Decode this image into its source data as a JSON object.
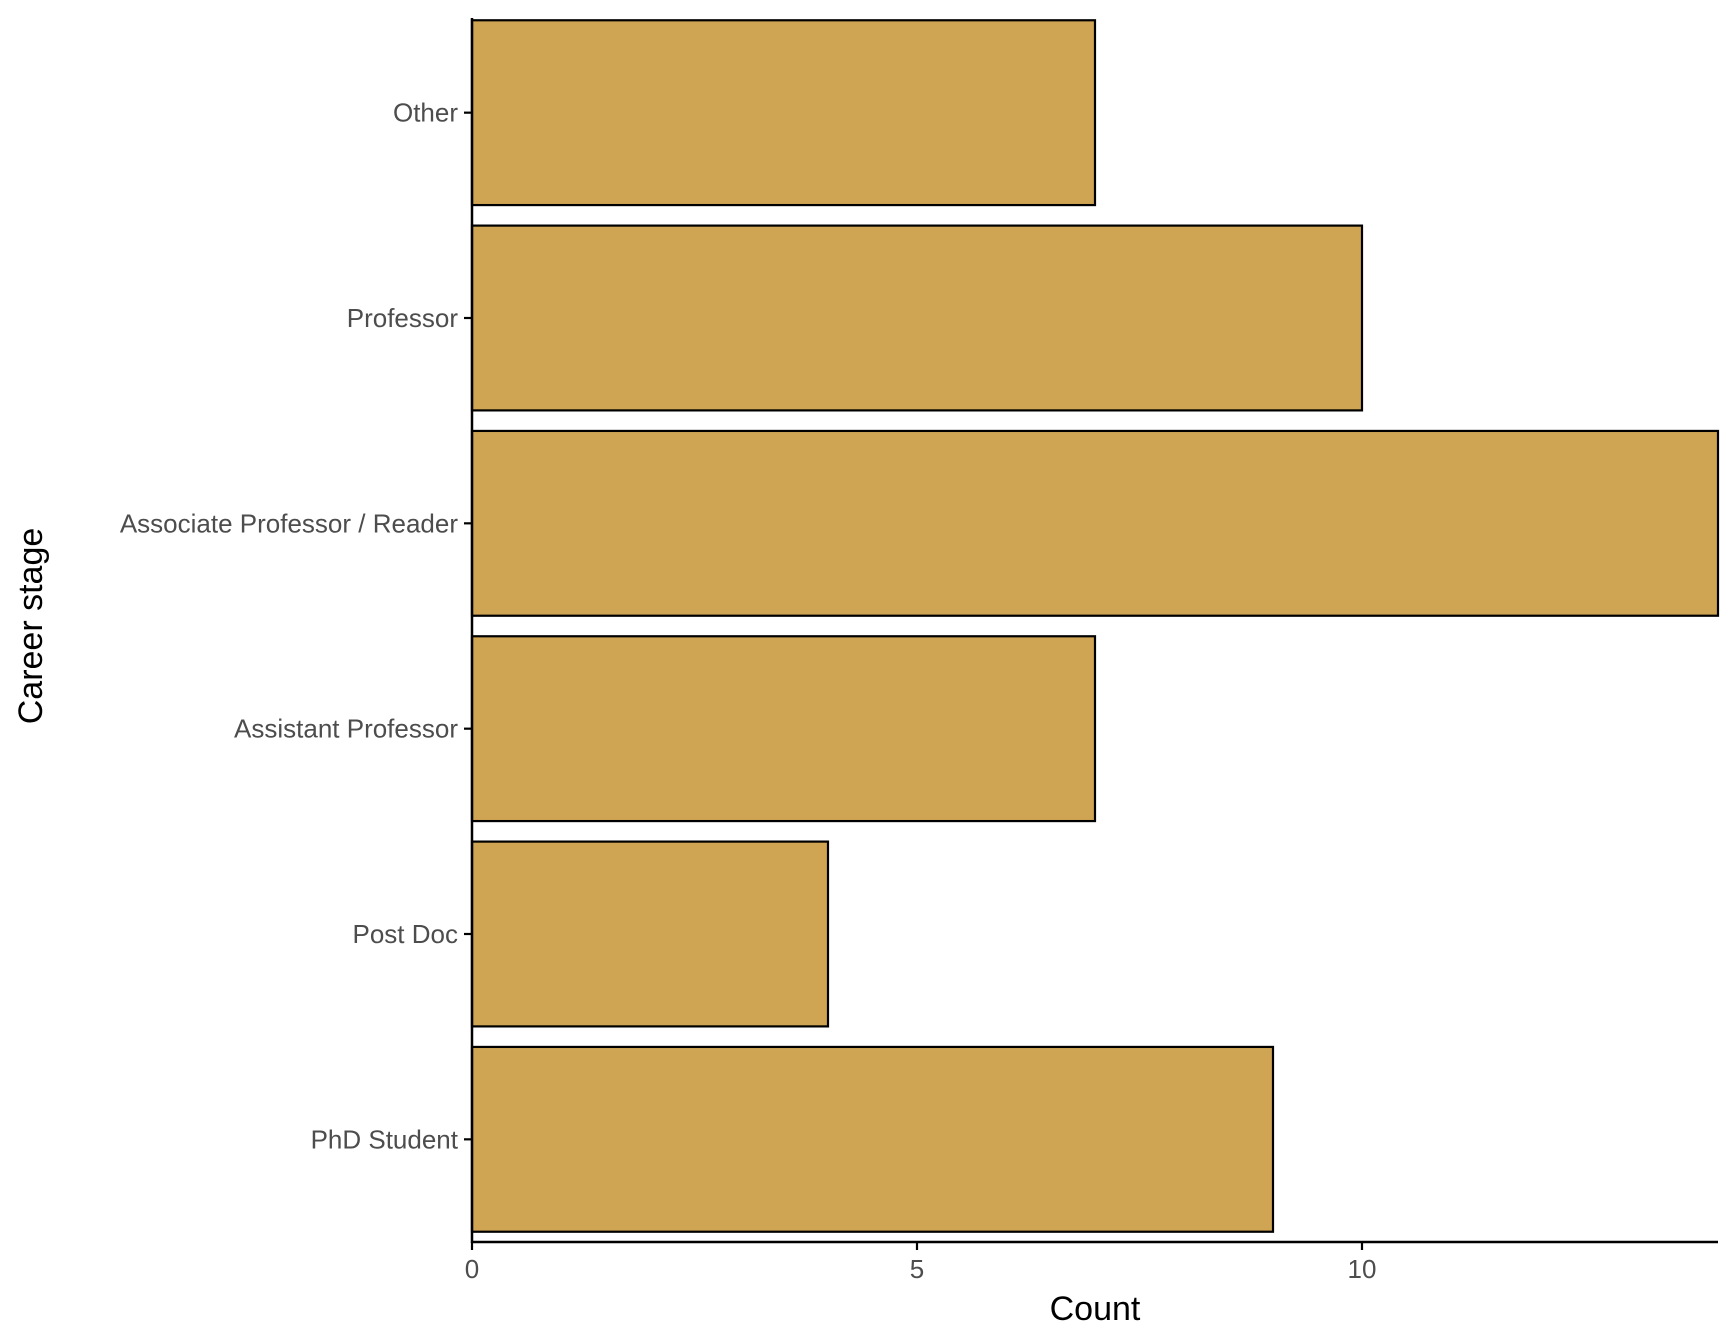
{
  "chart_data": {
    "type": "bar",
    "orientation": "horizontal",
    "categories": [
      "PhD Student",
      "Post Doc",
      "Assistant Professor",
      "Associate Professor / Reader",
      "Professor",
      "Other"
    ],
    "values": [
      9,
      4,
      7,
      14,
      10,
      7
    ],
    "xlabel": "Count",
    "ylabel": "Career stage",
    "xlim": [
      0,
      14
    ],
    "xticks": [
      0,
      5,
      10
    ],
    "grid": false,
    "legend": "none",
    "bar_color": "#CFA554",
    "bar_edge_color": "#000000"
  }
}
